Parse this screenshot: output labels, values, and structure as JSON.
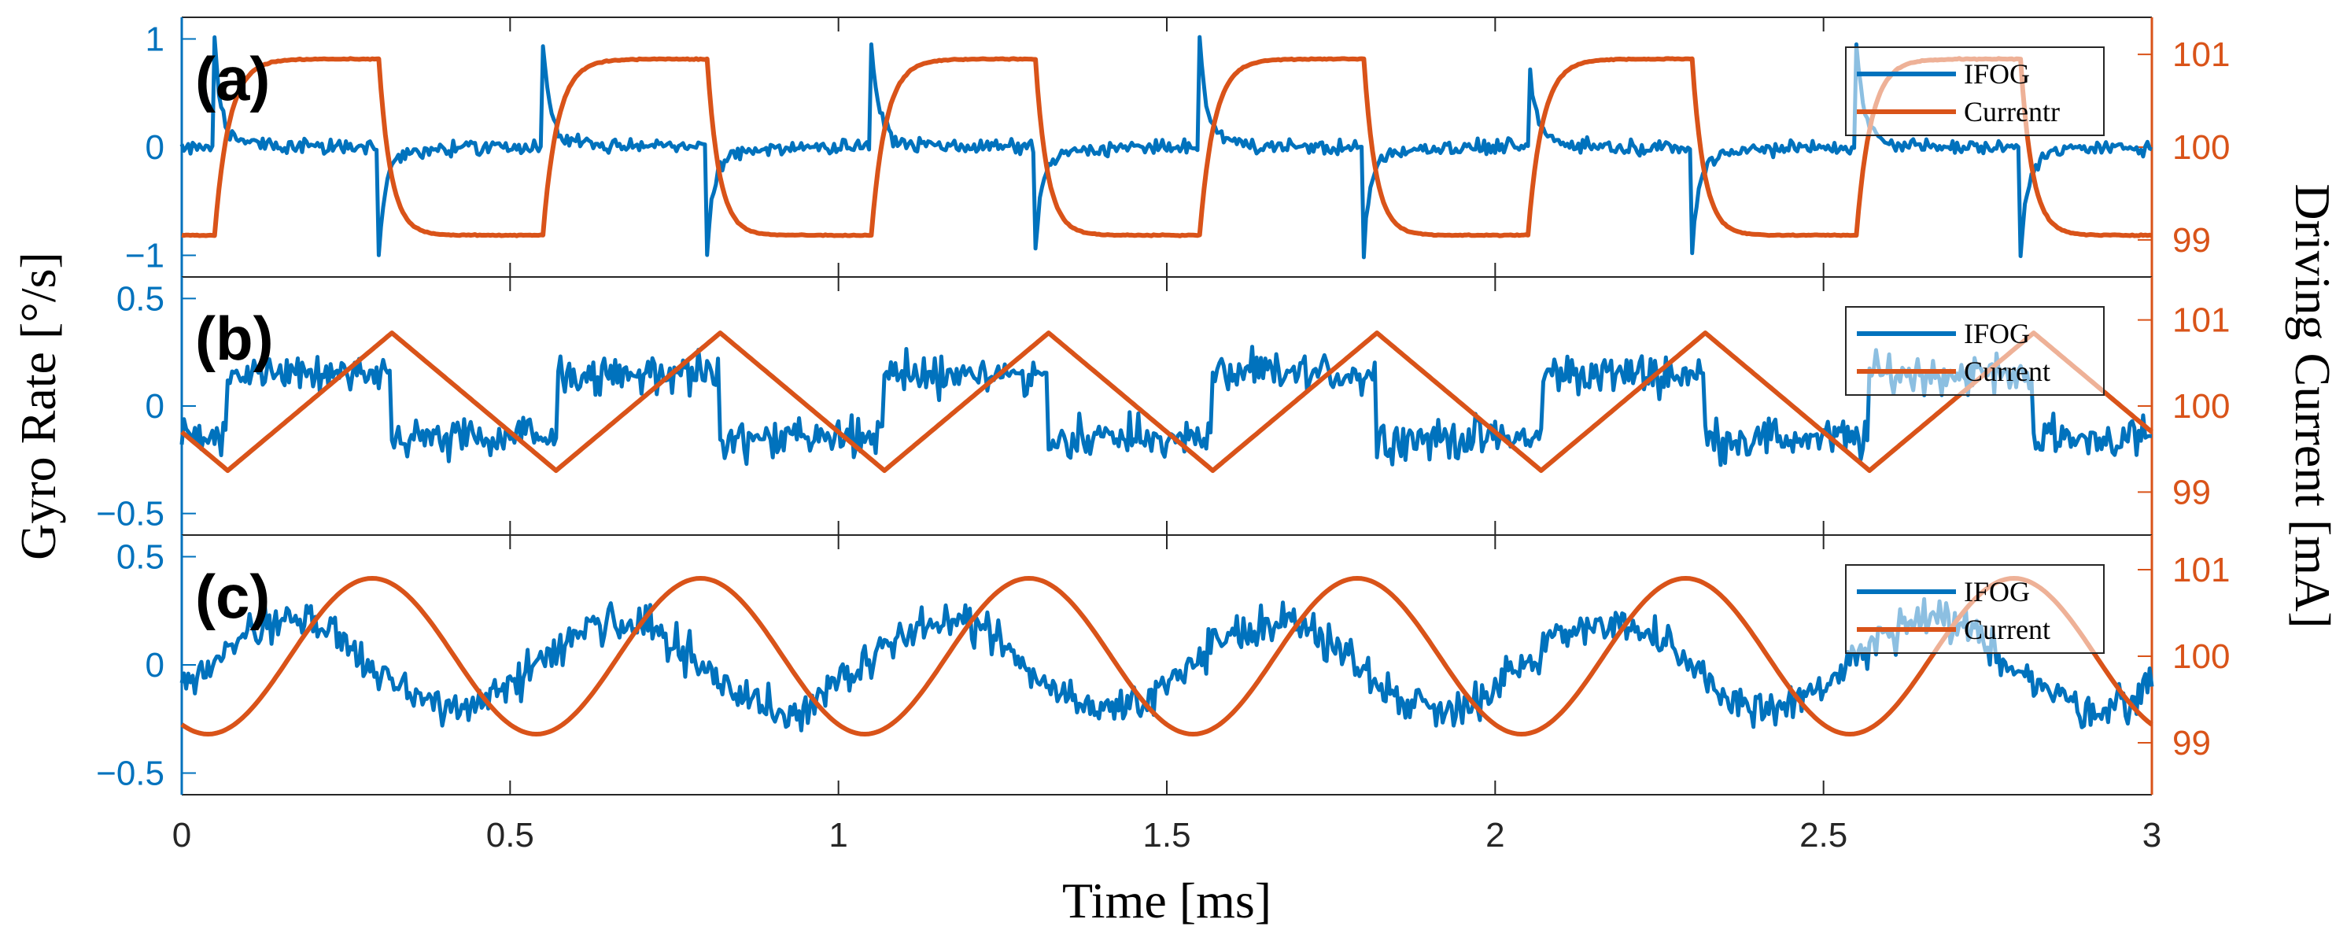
{
  "chart_data": {
    "type": "line",
    "xlabel": "Time [ms]",
    "ylabel_left": "Gyro Rate [°/s]",
    "ylabel_right": "Driving Current [mA]",
    "xlim": [
      0,
      3
    ],
    "x_ticks": [
      "0",
      "0.5",
      "1",
      "1.5",
      "2",
      "2.5",
      "3"
    ],
    "colors": {
      "ifog": "#0072BD",
      "current": "#D95319"
    },
    "panels": [
      {
        "label": "(a)",
        "waveform": "square",
        "period_ms": 0.5,
        "ylim_left": [
          -1.2,
          1.2
        ],
        "ylim_right": [
          98.6,
          101.4
        ],
        "yticks_left": [
          {
            "value": 1,
            "label": "1"
          },
          {
            "value": 0,
            "label": "0"
          },
          {
            "value": -1,
            "label": "−1"
          }
        ],
        "yticks_right": [
          {
            "value": 101,
            "label": "101"
          },
          {
            "value": 100,
            "label": "100"
          },
          {
            "value": 99,
            "label": "99"
          }
        ],
        "series": [
          {
            "name": "IFOG",
            "description": "spike to ~0.85 on rising edge, ~-0.85 on falling edge, noise ~0.05",
            "amplitude": 0.85,
            "noise": 0.05
          },
          {
            "name": "Currentr",
            "low": 99.05,
            "high": 100.95,
            "rise_start_ms": 0.05,
            "fall_start_ms": 0.3
          }
        ],
        "legend": [
          "IFOG",
          "Currentr"
        ]
      },
      {
        "label": "(b)",
        "waveform": "triangle",
        "period_ms": 0.5,
        "ylim_left": [
          -0.6,
          0.6
        ],
        "ylim_right": [
          98.5,
          101.5
        ],
        "yticks_left": [
          {
            "value": 0.5,
            "label": "0.5"
          },
          {
            "value": 0,
            "label": "0"
          },
          {
            "value": -0.5,
            "label": "−0.5"
          }
        ],
        "yticks_right": [
          {
            "value": 101,
            "label": "101"
          },
          {
            "value": 100,
            "label": "100"
          },
          {
            "value": 99,
            "label": "99"
          }
        ],
        "series": [
          {
            "name": "IFOG",
            "description": "square-like ~±0.15 with noise",
            "amplitude": 0.15,
            "noise": 0.07
          },
          {
            "name": "Current",
            "min": 99.25,
            "max": 100.85,
            "min_at_ms": 0.07,
            "max_at_ms": 0.32
          }
        ],
        "legend": [
          "IFOG",
          "Current"
        ]
      },
      {
        "label": "(c)",
        "waveform": "sine",
        "period_ms": 0.5,
        "ylim_left": [
          -0.6,
          0.6
        ],
        "ylim_right": [
          98.4,
          101.4
        ],
        "yticks_left": [
          {
            "value": 0.5,
            "label": "0.5"
          },
          {
            "value": 0,
            "label": "0"
          },
          {
            "value": -0.5,
            "label": "−0.5"
          }
        ],
        "yticks_right": [
          {
            "value": 101,
            "label": "101"
          },
          {
            "value": 100,
            "label": "100"
          },
          {
            "value": 99,
            "label": "99"
          }
        ],
        "series": [
          {
            "name": "IFOG",
            "description": "cosine ~0.2 amplitude with noise",
            "amplitude": 0.2,
            "noise": 0.07
          },
          {
            "name": "Current",
            "min": 99.1,
            "max": 100.9,
            "min_at_ms": 0.04,
            "max_at_ms": 0.29
          }
        ],
        "legend": [
          "IFOG",
          "Current"
        ]
      }
    ]
  }
}
